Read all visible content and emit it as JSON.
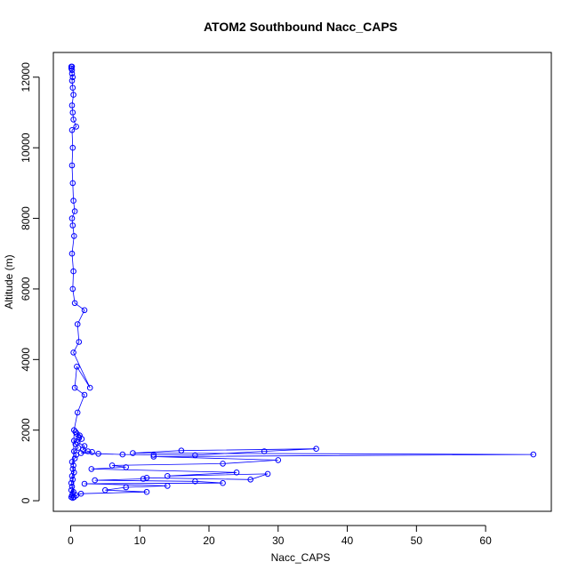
{
  "chart_data": {
    "type": "scatter",
    "title": "ATOM2 Southbound Nacc_CAPS",
    "xlabel": "Nacc_CAPS",
    "ylabel": "Altitude (m)",
    "xlim": [
      -2.5,
      69.5
    ],
    "ylim": [
      -300,
      12700
    ],
    "x_ticks": [
      0,
      10,
      20,
      30,
      40,
      50,
      60
    ],
    "y_ticks": [
      0,
      2000,
      4000,
      6000,
      8000,
      10000,
      12000
    ],
    "grid": false,
    "legend": "none",
    "style": "points connected by lines (type='b')",
    "series": [
      {
        "color": "#0000ff",
        "x": [
          0.1,
          0.2,
          0.3,
          0.1,
          0.4,
          0.2,
          0.1,
          0.3,
          0.2,
          0.5,
          0.3,
          0.4,
          0.2,
          0.6,
          0.8,
          0.5,
          1.1,
          0.7,
          0.5,
          1.2,
          0.9,
          0.7,
          1.3,
          1.6,
          1.0,
          2.0,
          1.8,
          2.5,
          3.1,
          1.5,
          4.0,
          7.5,
          12.0,
          18.0,
          28.0,
          35.5,
          16.0,
          9.0,
          66.9,
          12.0,
          30.0,
          22.0,
          6.0,
          8.0,
          3.0,
          24.0,
          14.0,
          28.5,
          26.0,
          11.0,
          10.5,
          3.5,
          18.0,
          22.0,
          2.0,
          14.0,
          8.0,
          5.0,
          11.0,
          1.5,
          0.8,
          0.5,
          0.3,
          0.5,
          1.0,
          2.0,
          0.6,
          0.9,
          2.8,
          0.4,
          1.2,
          1.0,
          2.0,
          0.6,
          0.3,
          0.4,
          0.2,
          0.5,
          0.3,
          0.2,
          0.6,
          0.4,
          0.3,
          0.2,
          0.3,
          0.2,
          0.8,
          0.4,
          0.3,
          0.2,
          0.4,
          0.3,
          0.2,
          0.3,
          0.2,
          0.2,
          0.1,
          0.2,
          0.1
        ],
        "y": [
          100,
          150,
          200,
          300,
          250,
          400,
          500,
          600,
          700,
          800,
          900,
          1000,
          1100,
          1200,
          1300,
          1400,
          1500,
          1600,
          1700,
          1800,
          1900,
          1950,
          1850,
          1750,
          1650,
          1550,
          1450,
          1400,
          1380,
          1350,
          1330,
          1310,
          1300,
          1290,
          1400,
          1470,
          1420,
          1350,
          1310,
          1250,
          1150,
          1050,
          1000,
          950,
          900,
          800,
          700,
          760,
          600,
          650,
          620,
          580,
          550,
          500,
          480,
          420,
          380,
          300,
          250,
          200,
          150,
          100,
          80,
          2000,
          2500,
          3000,
          3200,
          3800,
          3200,
          4200,
          4500,
          5000,
          5400,
          5600,
          6000,
          6500,
          7000,
          7500,
          7800,
          8000,
          8200,
          8500,
          9000,
          9500,
          10000,
          10500,
          10600,
          10800,
          11000,
          11200,
          11500,
          11700,
          11900,
          12000,
          12100,
          12200,
          12250,
          12300,
          12300
        ]
      }
    ]
  }
}
